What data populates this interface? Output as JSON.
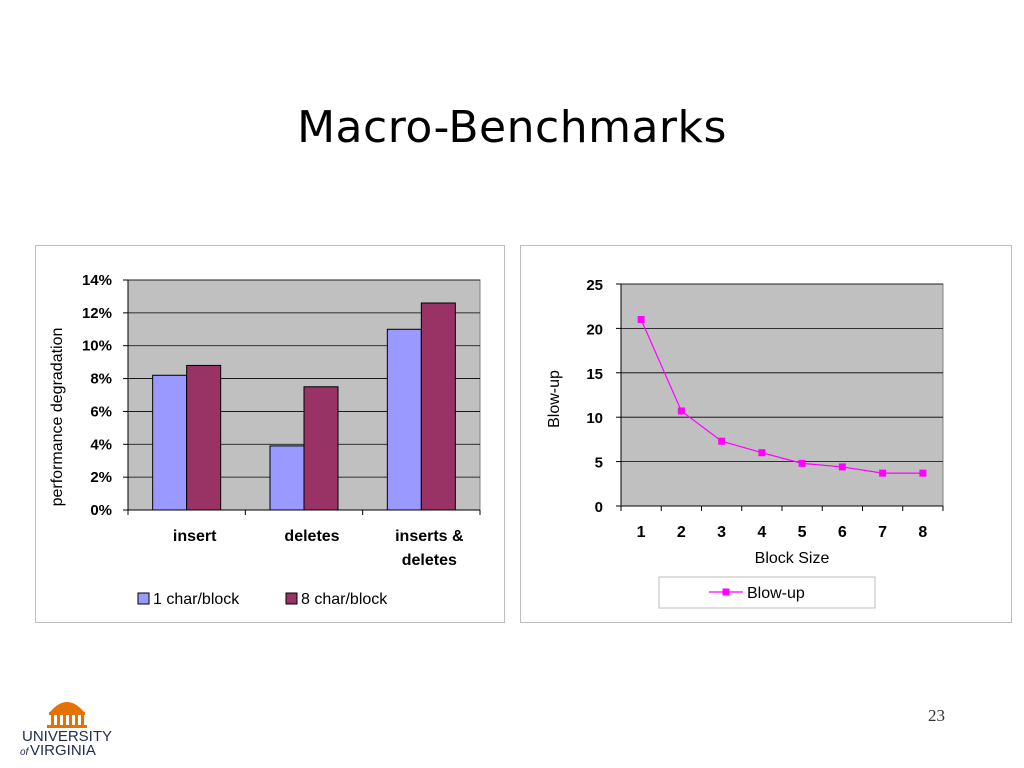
{
  "slide": {
    "title": "Macro-Benchmarks",
    "page_number": "23",
    "logo": {
      "text_line1": "UNIVERSITY",
      "text_of": "of",
      "text_line2": "VIRGINIA",
      "accent": "#e57200"
    }
  },
  "chart_data": [
    {
      "type": "bar",
      "categories": [
        "insert",
        "deletes",
        "inserts & deletes"
      ],
      "category_lines": [
        [
          "insert"
        ],
        [
          "deletes"
        ],
        [
          "inserts &",
          "deletes"
        ]
      ],
      "series": [
        {
          "name": "1 char/block",
          "values": [
            8.2,
            3.9,
            11.0
          ],
          "color": "#9999ff"
        },
        {
          "name": "8 char/block",
          "values": [
            8.8,
            7.5,
            12.6
          ],
          "color": "#993366"
        }
      ],
      "xlabel": "",
      "ylabel": "performance degradation",
      "ylim": [
        0,
        14
      ],
      "yticks": [
        0,
        2,
        4,
        6,
        8,
        10,
        12,
        14
      ],
      "ytick_suffix": "%",
      "grid": true,
      "plot_bg": "#c0c0c0",
      "legend_position": "bottom"
    },
    {
      "type": "line",
      "x": [
        1,
        2,
        3,
        4,
        5,
        6,
        7,
        8
      ],
      "series": [
        {
          "name": "Blow-up",
          "values": [
            21.0,
            10.7,
            7.3,
            6.0,
            4.8,
            4.4,
            3.7,
            3.7
          ],
          "color": "#ff00ff"
        }
      ],
      "xlabel": "Block Size",
      "ylabel": "Blow-up",
      "ylim": [
        0,
        25
      ],
      "yticks": [
        0,
        5,
        10,
        15,
        20,
        25
      ],
      "grid": true,
      "plot_bg": "#c0c0c0",
      "legend_position": "bottom"
    }
  ]
}
